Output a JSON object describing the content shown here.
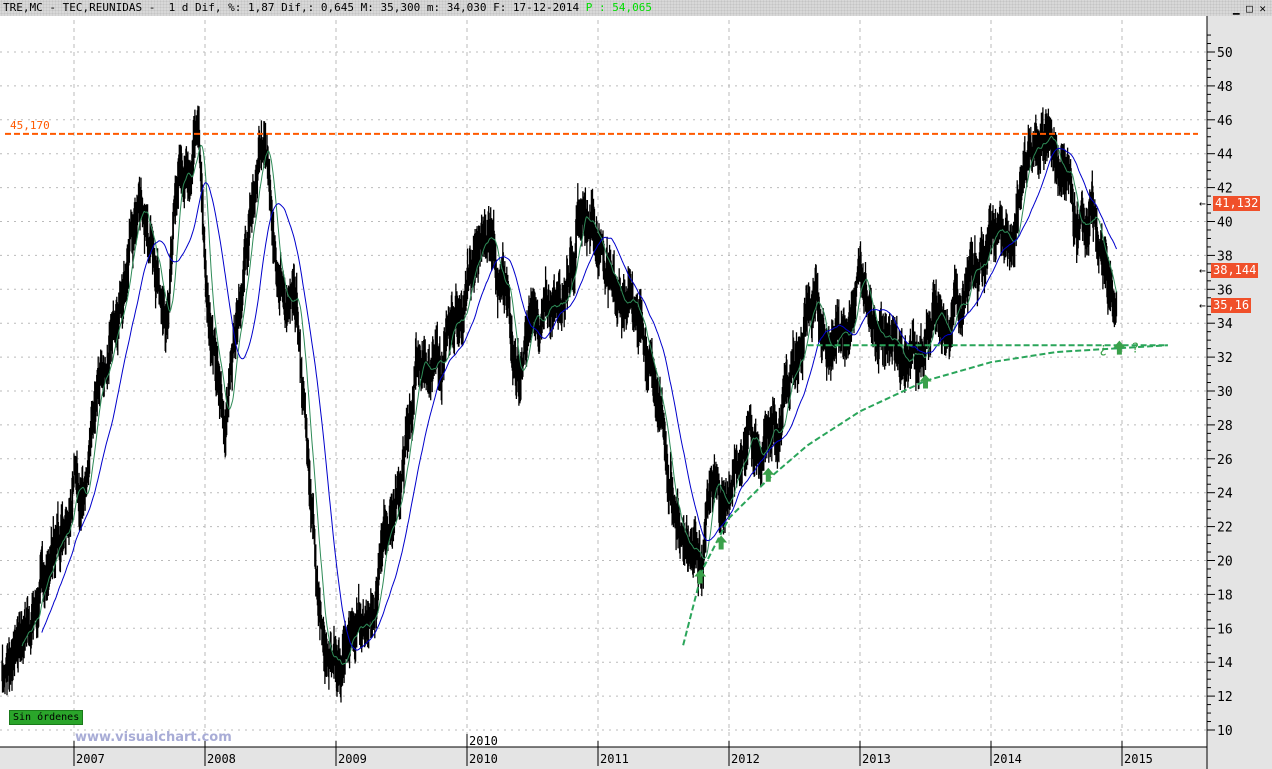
{
  "window": {
    "title": "TRE,MC - TEC,REUNIDAS -  1 d Dif, %: 1,87 Dif,: 0,645 M: 35,300 m: 34,030 F: 17-12-2014 ",
    "p_label": "P : 54,065",
    "controls": [
      "minimize-icon",
      "maximize-icon",
      "close-icon"
    ]
  },
  "status": {
    "orders": "Sin órdenes",
    "watermark": "www.visualchart.com"
  },
  "chart_data": {
    "type": "line",
    "title": "TRE,MC - TEC,REUNIDAS",
    "ylim": [
      9,
      52
    ],
    "y_ticks": [
      10,
      12,
      14,
      16,
      18,
      20,
      22,
      24,
      26,
      28,
      30,
      32,
      34,
      36,
      38,
      40,
      42,
      44,
      46,
      48,
      50
    ],
    "x_ticks": [
      "2007",
      "2008",
      "2009",
      "2010",
      "2011",
      "2012",
      "2013",
      "2014",
      "2015"
    ],
    "x_marker_label": "2010",
    "grid": true,
    "colors": {
      "price": "#000000",
      "ma_short": "#2e8b57",
      "ma_long": "#0000cc",
      "resistance": "#ff5a00",
      "support": "#2aa55a",
      "tag": "#f0502a"
    },
    "price": {
      "t": [
        2006.45,
        2006.6,
        2006.75,
        2006.9,
        2007.0,
        2007.1,
        2007.2,
        2007.3,
        2007.4,
        2007.5,
        2007.6,
        2007.7,
        2007.8,
        2007.9,
        2007.95,
        2008.0,
        2008.1,
        2008.15,
        2008.25,
        2008.35,
        2008.42,
        2008.5,
        2008.6,
        2008.7,
        2008.8,
        2008.9,
        2009.0,
        2009.1,
        2009.25,
        2009.4,
        2009.5,
        2009.6,
        2009.7,
        2009.8,
        2009.9,
        2010.0,
        2010.1,
        2010.2,
        2010.3,
        2010.4,
        2010.5,
        2010.6,
        2010.75,
        2010.85,
        2010.95,
        2011.0,
        2011.1,
        2011.2,
        2011.3,
        2011.45,
        2011.55,
        2011.65,
        2011.75,
        2011.8,
        2011.85,
        2011.95,
        2012.05,
        2012.15,
        2012.25,
        2012.35,
        2012.45,
        2012.55,
        2012.6,
        2012.7,
        2012.8,
        2012.9,
        2013.0,
        2013.1,
        2013.2,
        2013.3,
        2013.45,
        2013.55,
        2013.65,
        2013.75,
        2013.85,
        2013.95,
        2014.05,
        2014.15,
        2014.3,
        2014.4,
        2014.5,
        2014.6,
        2014.65,
        2014.75,
        2014.85,
        2014.9,
        2014.96
      ],
      "close": [
        13.5,
        16,
        18,
        22,
        26,
        24,
        30,
        34,
        38,
        41,
        38,
        35,
        43,
        45,
        46,
        38,
        30,
        28,
        36,
        40,
        44,
        42,
        36,
        34,
        25,
        16,
        13,
        15,
        17,
        22,
        25,
        30,
        32,
        31,
        34,
        36,
        38,
        40,
        35,
        31,
        34,
        34,
        37,
        40,
        41,
        39,
        37,
        36,
        35,
        30,
        25,
        21,
        22,
        20,
        24,
        23,
        25,
        28,
        26,
        27,
        30,
        33,
        35,
        34,
        33,
        35,
        36,
        35,
        34,
        33,
        32,
        34,
        33,
        35,
        37,
        38,
        40,
        38,
        44,
        45,
        44,
        42,
        39,
        41,
        38,
        36,
        34
      ]
    },
    "resistance": {
      "value": 45.17,
      "label": "45,170"
    },
    "support_level": 32.7,
    "support_curve": {
      "t": [
        2011.65,
        2011.8,
        2012.0,
        2012.3,
        2012.6,
        2013.0,
        2013.5,
        2014.0,
        2014.5,
        2015.35
      ],
      "value": [
        15,
        19.5,
        22.5,
        24.8,
        26.8,
        28.8,
        30.6,
        31.7,
        32.3,
        32.7
      ]
    },
    "arrows_t": [
      [
        2011.78,
        19
      ],
      [
        2011.94,
        21
      ],
      [
        2012.3,
        25
      ],
      [
        2013.5,
        30.5
      ],
      [
        2014.98,
        32.5
      ]
    ],
    "question_marks": [
      "¿",
      "?"
    ],
    "price_tags": [
      "41,132",
      "38,144",
      "35,16"
    ]
  }
}
